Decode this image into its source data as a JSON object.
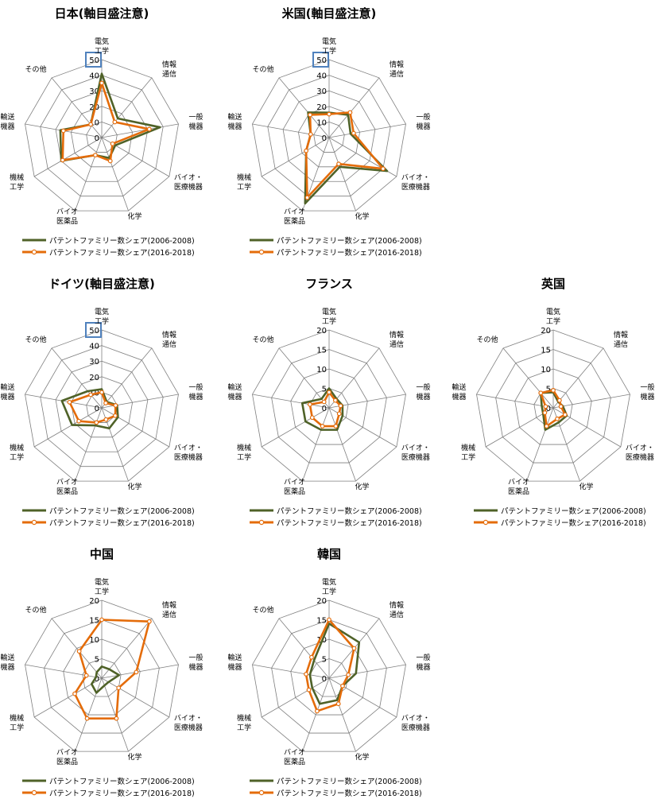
{
  "categories": [
    "電気\n工学",
    "情報\n通信",
    "一般\n機器",
    "バイオ・\n医療機器",
    "化学",
    "バイオ\n医薬品",
    "機械\n工学",
    "輸送\n機器",
    "その他"
  ],
  "legend": [
    "パテントファミリー数シェア(2006-2008)",
    "パテントファミリー数シェア(2016-2018)"
  ],
  "colors": {
    "series1": "#4f6228",
    "series2": "#e46c0a",
    "highlight": "#4f81bd",
    "grid": "#7f7f7f"
  },
  "chart_data": [
    {
      "type": "radar",
      "title": "日本(軸目盛注意)",
      "rmax": 50,
      "ticks": [
        0,
        10,
        20,
        30,
        40,
        50
      ],
      "highlight_tick": true,
      "series": [
        {
          "name": "パテントファミリー数シェア(2006-2008)",
          "values": [
            41,
            16,
            38,
            10,
            14,
            12,
            30,
            27,
            11
          ]
        },
        {
          "name": "パテントファミリー数シェア(2016-2018)",
          "values": [
            35,
            13,
            31,
            8,
            16,
            12,
            29,
            25,
            11
          ]
        }
      ]
    },
    {
      "type": "radar",
      "title": "米国(軸目盛注意)",
      "rmax": 50,
      "ticks": [
        0,
        10,
        20,
        30,
        40,
        50
      ],
      "highlight_tick": true,
      "series": [
        {
          "name": "パテントファミリー数シェア(2006-2008)",
          "values": [
            16,
            19,
            14,
            43,
            20,
            45,
            17,
            12,
            21
          ]
        },
        {
          "name": "パテントファミリー数シェア(2016-2018)",
          "values": [
            15,
            21,
            16,
            40,
            18,
            41,
            17,
            12,
            19
          ]
        }
      ]
    },
    {
      "type": "radar",
      "title": "ドイツ(軸目盛注意)",
      "rmax": 50,
      "ticks": [
        0,
        10,
        20,
        30,
        40,
        50
      ],
      "highlight_tick": true,
      "series": [
        {
          "name": "パテントファミリー数シェア(2006-2008)",
          "values": [
            12,
            5,
            10,
            12,
            14,
            12,
            22,
            26,
            14
          ]
        },
        {
          "name": "パテントファミリー数シェア(2016-2018)",
          "values": [
            10,
            4,
            9,
            10,
            8,
            10,
            17,
            21,
            11
          ]
        }
      ]
    },
    {
      "type": "radar",
      "title": "フランス",
      "rmax": 20,
      "ticks": [
        0,
        5,
        10,
        15,
        20
      ],
      "series": [
        {
          "name": "パテントファミリー数シェア(2006-2008)",
          "values": [
            5,
            3,
            3.5,
            4,
            6,
            6,
            7,
            7,
            3
          ]
        },
        {
          "name": "パテントファミリー数シェア(2016-2018)",
          "values": [
            4,
            2.5,
            3,
            3,
            5,
            5,
            5,
            5,
            2
          ]
        }
      ]
    },
    {
      "type": "radar",
      "title": "英国",
      "rmax": 20,
      "ticks": [
        0,
        5,
        10,
        15,
        20
      ],
      "series": [
        {
          "name": "パテントファミリー数シェア(2006-2008)",
          "values": [
            4,
            2,
            2.5,
            4,
            4,
            6,
            3,
            3,
            5
          ]
        },
        {
          "name": "パテントファミリー数シェア(2016-2018)",
          "values": [
            4.5,
            2.5,
            2,
            3.5,
            3,
            5,
            2.5,
            2,
            5
          ]
        }
      ]
    },
    {
      "type": "radar",
      "title": "中国",
      "rmax": 20,
      "ticks": [
        0,
        5,
        10,
        15,
        20
      ],
      "series": [
        {
          "name": "パテントファミリー数シェア(2006-2008)",
          "values": [
            3,
            3,
            4.5,
            2,
            2,
            4,
            3,
            1.5,
            2
          ]
        },
        {
          "name": "パテントファミリー数シェア(2016-2018)",
          "values": [
            15,
            19,
            9,
            5,
            11,
            11,
            8,
            4,
            9
          ]
        }
      ]
    },
    {
      "type": "radar",
      "title": "韓国",
      "rmax": 20,
      "ticks": [
        0,
        5,
        10,
        15,
        20
      ],
      "series": [
        {
          "name": "パテントファミリー数シェア(2006-2008)",
          "values": [
            14,
            12,
            7,
            4,
            6,
            7,
            5,
            5,
            6
          ]
        },
        {
          "name": "パテントファミリー数シェア(2016-2018)",
          "values": [
            15,
            10,
            5,
            4,
            7,
            9,
            6,
            6,
            7
          ]
        }
      ]
    }
  ]
}
